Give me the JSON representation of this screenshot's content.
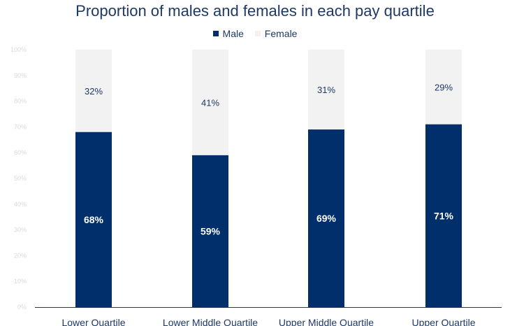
{
  "chart_data": {
    "type": "bar",
    "stacked": true,
    "title": "Proportion of males and females in each pay quartile",
    "categories": [
      "Lower Quartile",
      "Lower Middle Quartile",
      "Upper Middle Quartile",
      "Upper Quartile"
    ],
    "series": [
      {
        "name": "Male",
        "values": [
          68,
          59,
          69,
          71
        ],
        "labels": [
          "68%",
          "59%",
          "69%",
          "71%"
        ],
        "color": "#002f6c"
      },
      {
        "name": "Female",
        "values": [
          32,
          41,
          31,
          29
        ],
        "labels": [
          "32%",
          "41%",
          "31%",
          "29%"
        ],
        "color": "#f2f2f2"
      }
    ],
    "y_ticks": [
      "0%",
      "10%",
      "20%",
      "30%",
      "40%",
      "50%",
      "60%",
      "70%",
      "80%",
      "90%",
      "100%"
    ],
    "ylim": [
      0,
      100
    ],
    "legend_position": "top",
    "grid": false
  }
}
